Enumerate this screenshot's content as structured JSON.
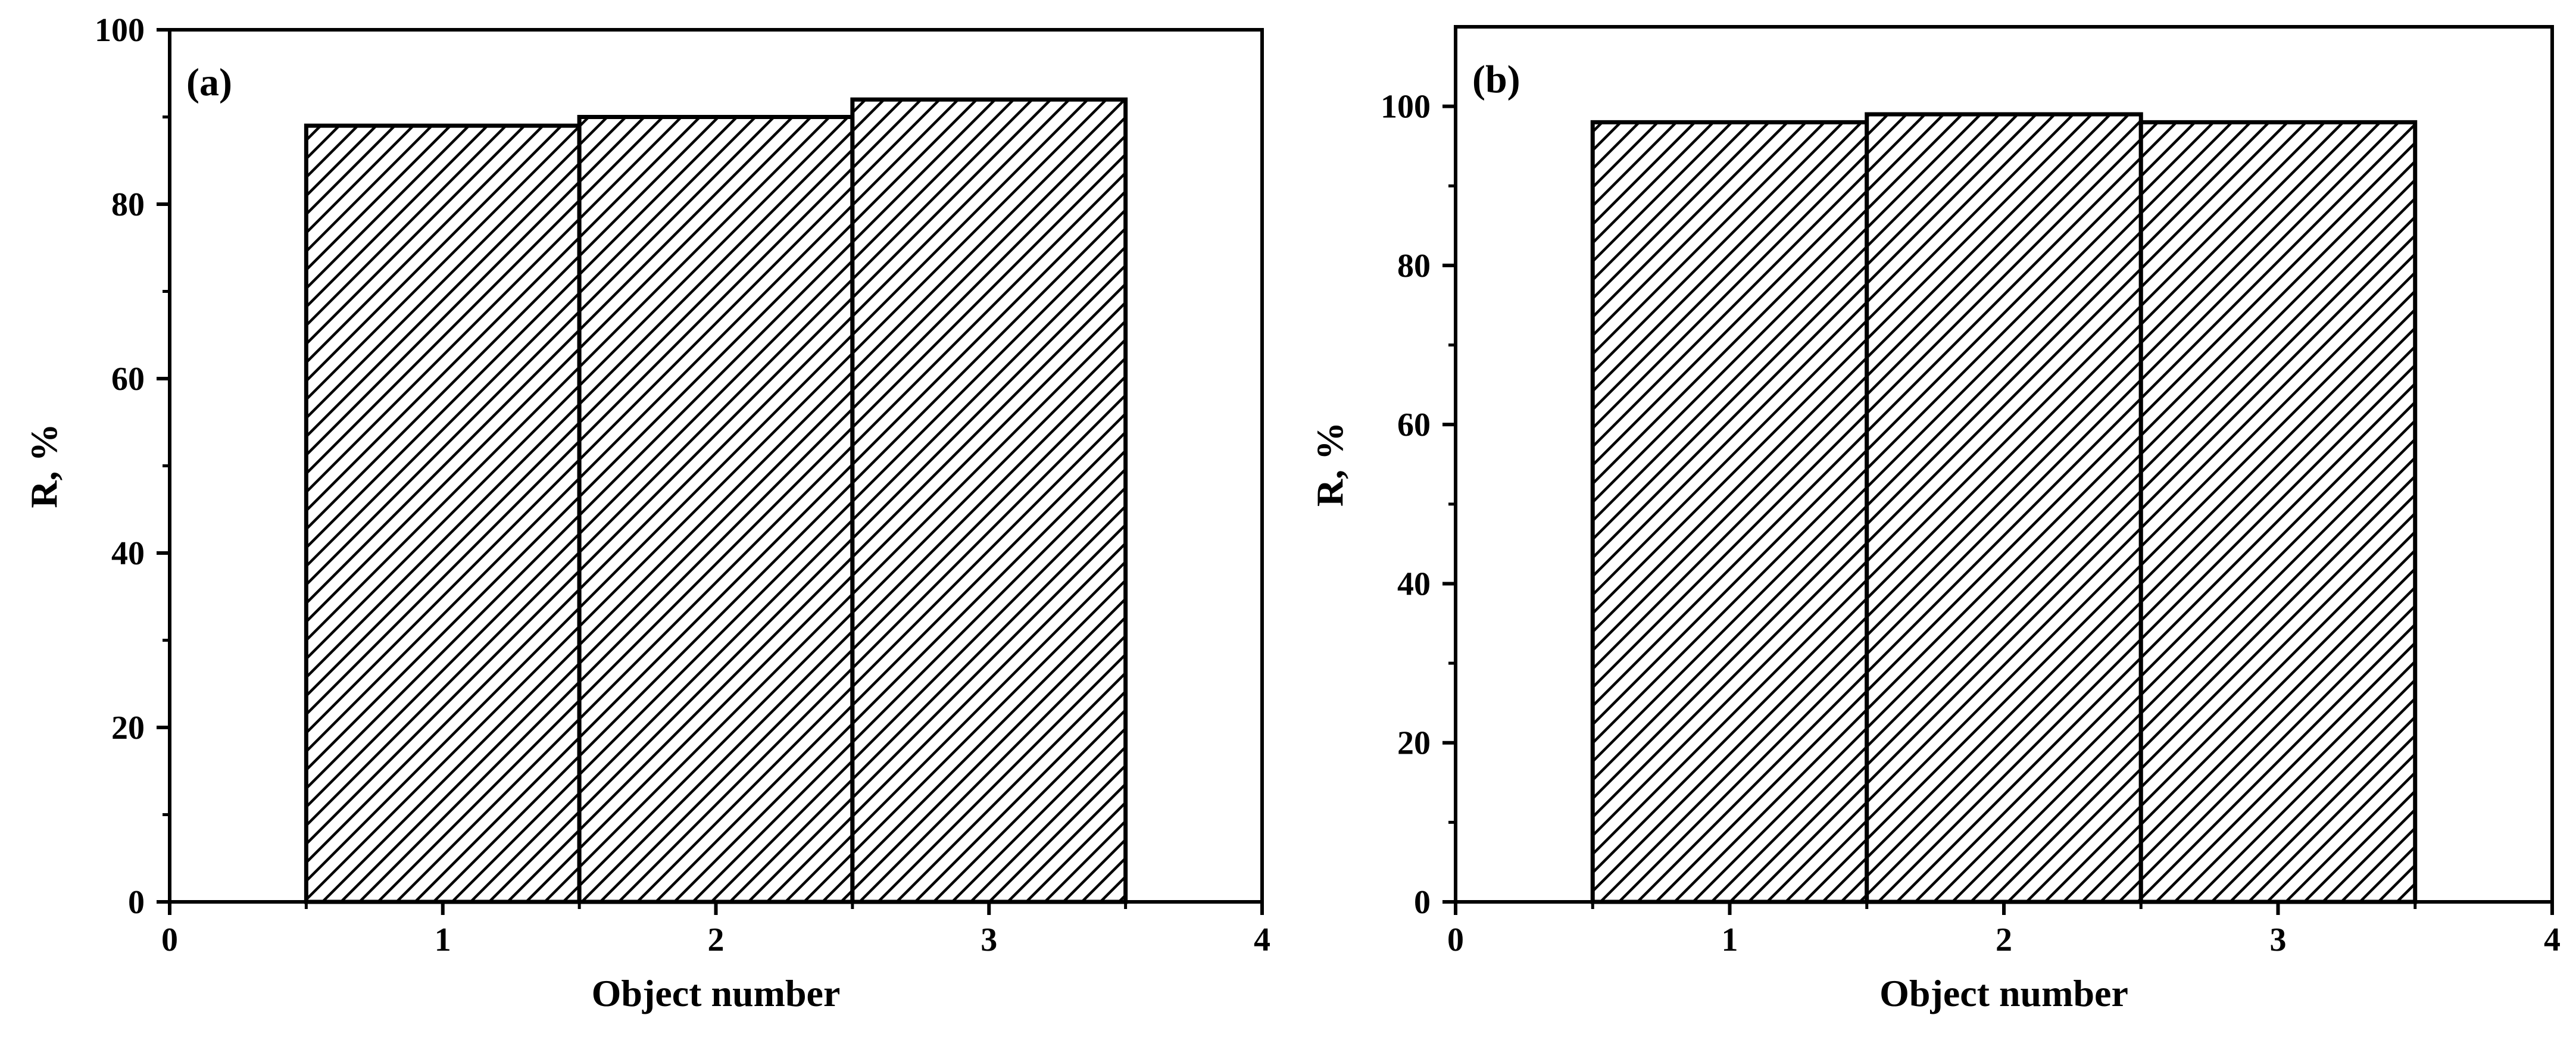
{
  "chart_data": [
    {
      "type": "bar",
      "panel_label": "(a)",
      "categories": [
        1,
        2,
        3
      ],
      "values": [
        89,
        90,
        92
      ],
      "xlabel": "Object number",
      "ylabel": "R, %",
      "xlim": [
        0,
        4
      ],
      "ylim": [
        0,
        100
      ],
      "xticks": [
        0,
        1,
        2,
        3,
        4
      ],
      "yticks": [
        0,
        20,
        40,
        60,
        80,
        100
      ],
      "bar_width": 1,
      "fill": "diagonal-hatch",
      "grid": false,
      "legend": "none"
    },
    {
      "type": "bar",
      "panel_label": "(b)",
      "categories": [
        1,
        2,
        3
      ],
      "values": [
        98,
        99,
        98
      ],
      "xlabel": "Object number",
      "ylabel": "R, %",
      "xlim": [
        0,
        4
      ],
      "ylim": [
        0,
        110
      ],
      "xticks": [
        0,
        1,
        2,
        3,
        4
      ],
      "yticks": [
        0,
        20,
        40,
        60,
        80,
        100
      ],
      "bar_width": 1,
      "fill": "diagonal-hatch",
      "grid": false,
      "legend": "none"
    }
  ],
  "colors": {
    "axis": "#000000",
    "bar_stroke": "#000000",
    "hatch_line": "#000000",
    "background": "#ffffff"
  }
}
